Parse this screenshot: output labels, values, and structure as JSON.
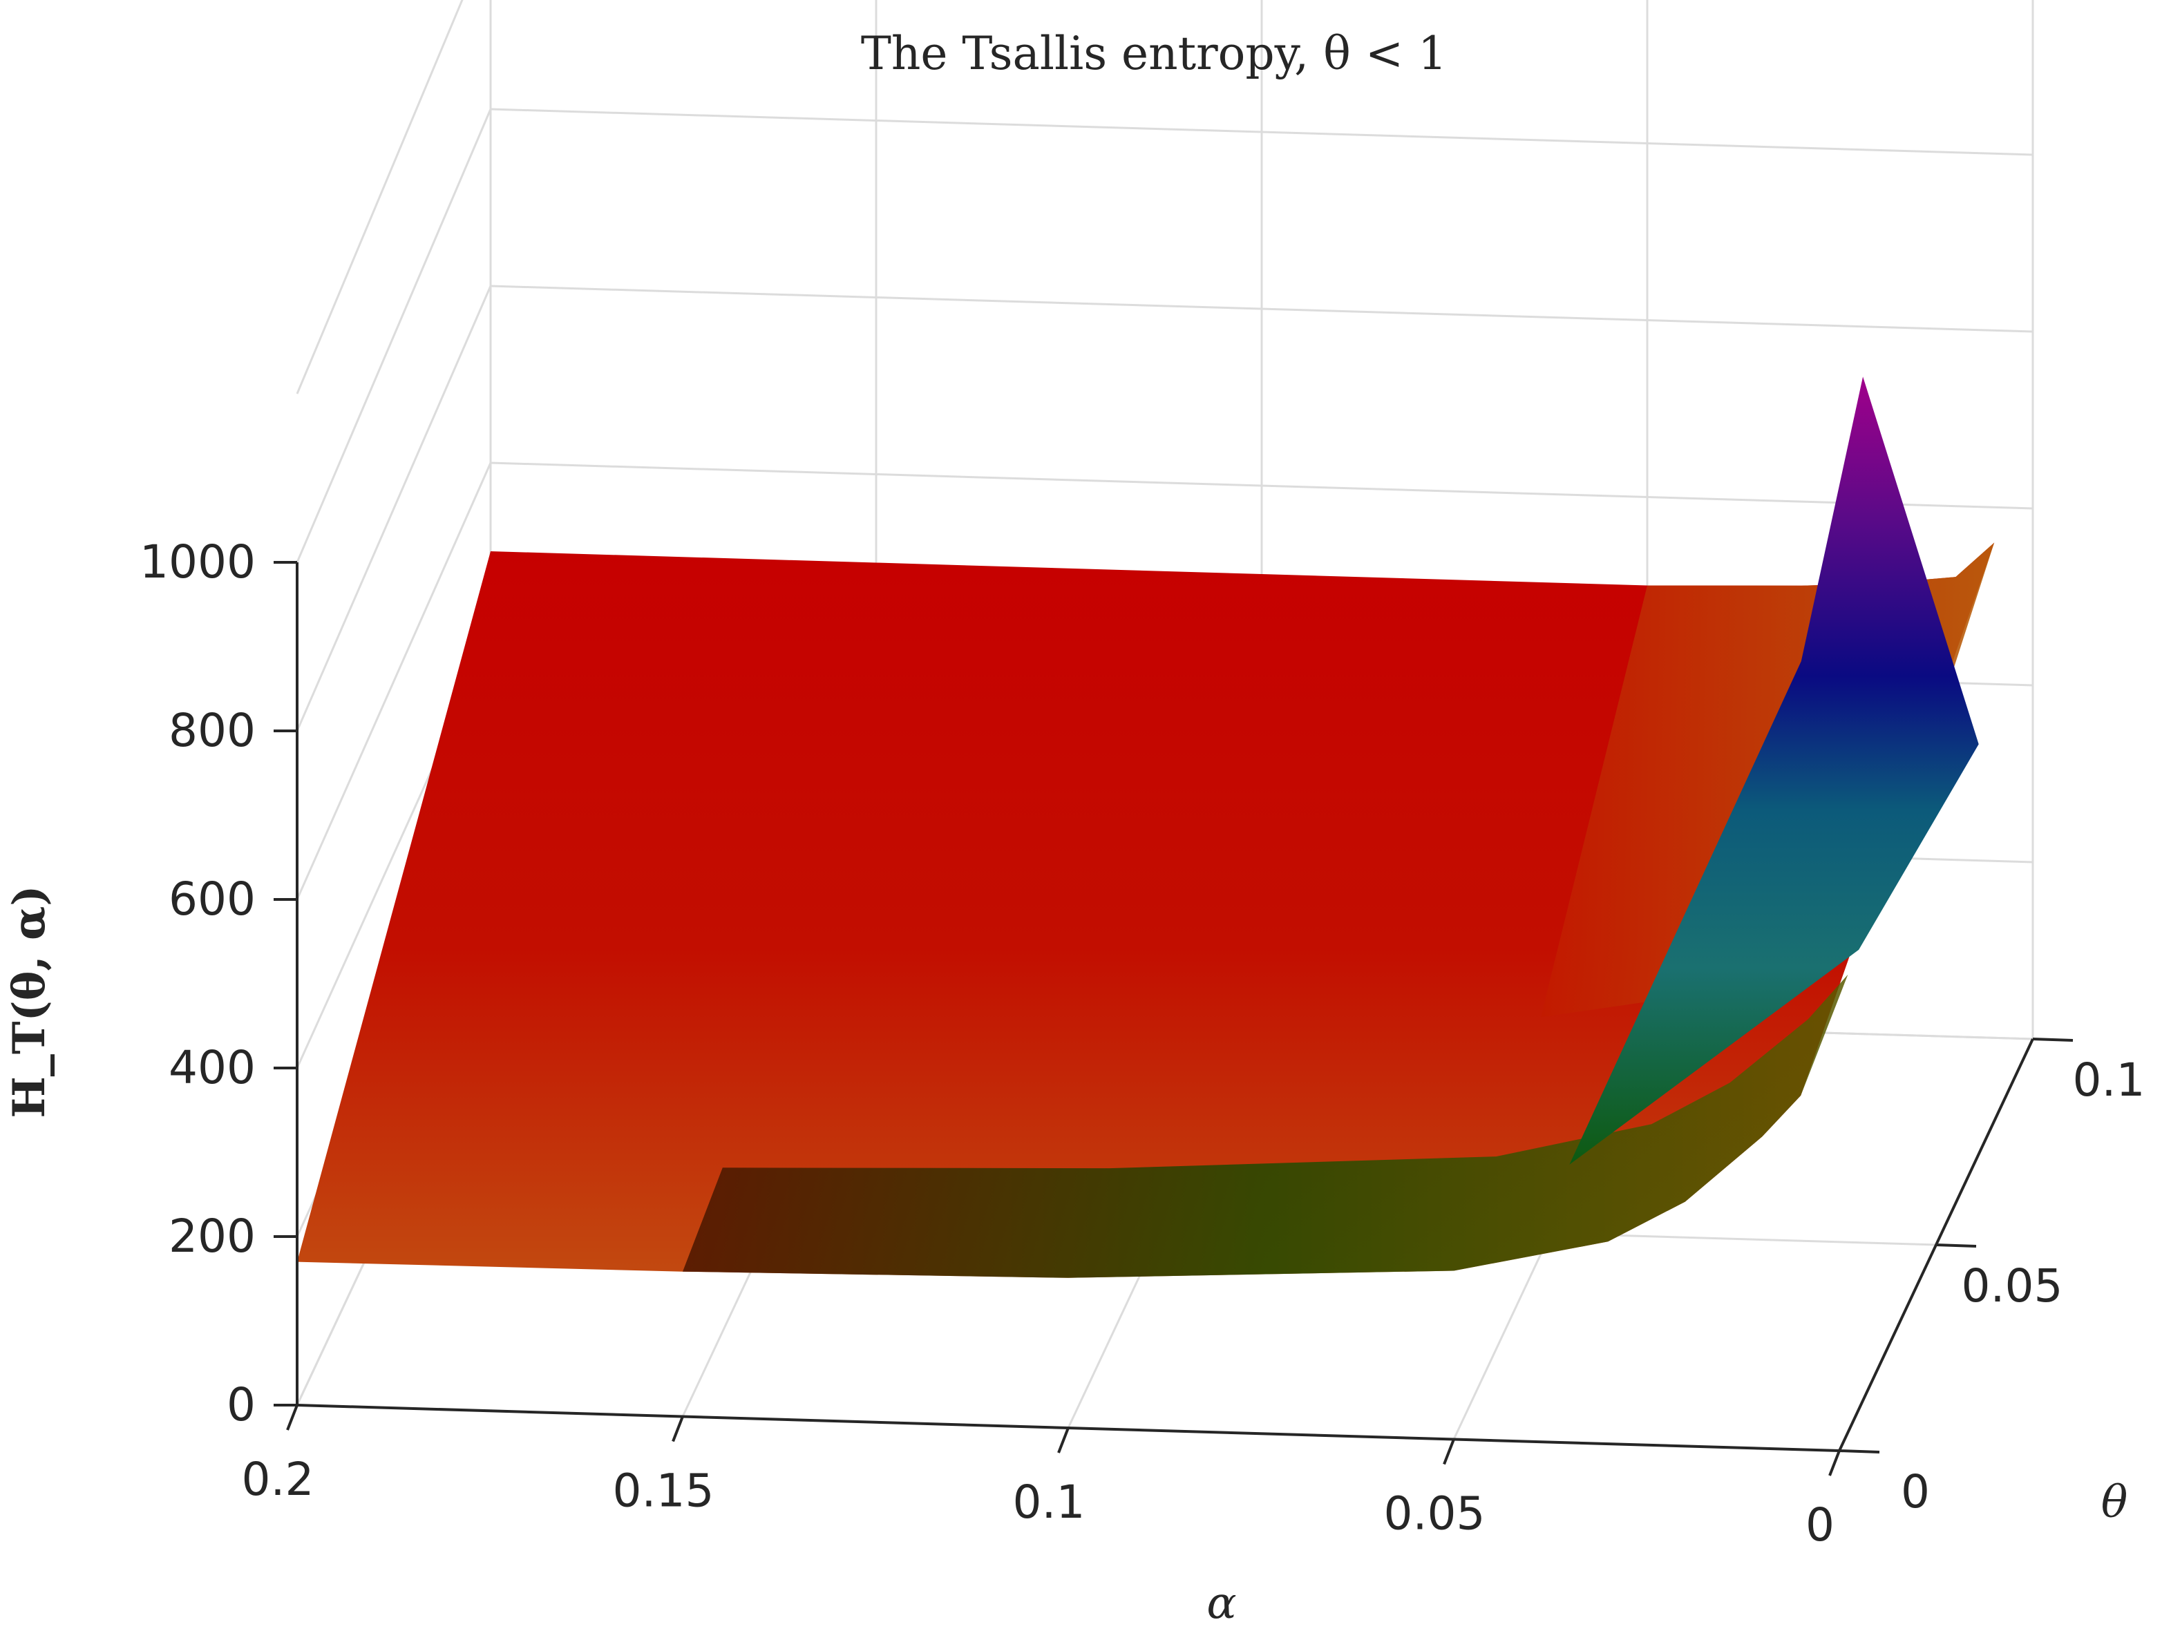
{
  "chart_data": {
    "type": "surface",
    "title": "The Tsallis entropy, θ < 1",
    "xlabel": "α",
    "ylabel": "θ",
    "zlabel": "H_T(θ, α)",
    "xlim": [
      0,
      0.2
    ],
    "ylim": [
      0,
      0.1
    ],
    "zlim": [
      0,
      1000
    ],
    "x_ticks": [
      "0.2",
      "0.15",
      "0.1",
      "0.05",
      "0"
    ],
    "y_ticks": [
      "0",
      "0.05",
      "0.1"
    ],
    "z_ticks": [
      "0",
      "200",
      "400",
      "600",
      "800",
      "1000"
    ],
    "grid": true,
    "colormap": [
      "#c00000",
      "#c0301a",
      "#2e5a00",
      "#0f3d10",
      "#1a6a5e",
      "#0a0a80",
      "#800080"
    ],
    "surface": {
      "alpha": [
        0.2,
        0.15,
        0.1,
        0.05,
        0.03,
        0.02,
        0.01,
        0.005
      ],
      "edge_theta_max": [
        500,
        500,
        500,
        500,
        505,
        510,
        520,
        560
      ],
      "edge_theta_min": [
        170,
        172,
        178,
        200,
        240,
        290,
        370,
        420
      ],
      "peak": {
        "alpha": 0.012,
        "theta": 0.06,
        "value": 950
      }
    }
  }
}
